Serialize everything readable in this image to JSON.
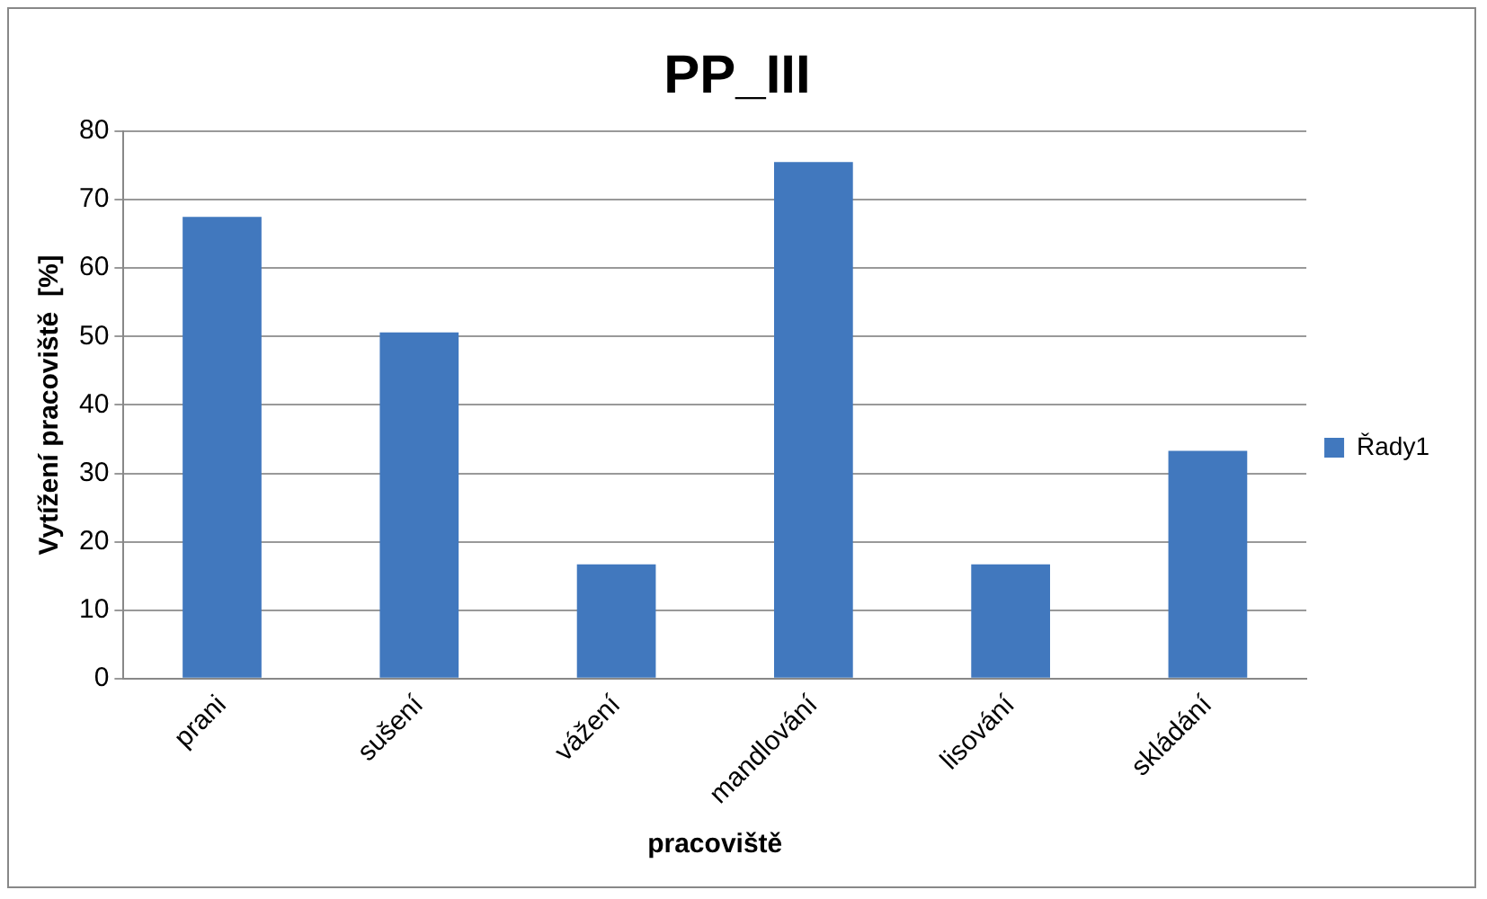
{
  "chart_data": {
    "type": "bar",
    "title": "PP_III",
    "xlabel": "pracoviště",
    "ylabel": "Vytížení pracoviště  [%]",
    "categories": [
      "prani",
      "sušení",
      "vážení",
      "mandlování",
      "lisování",
      "skládání"
    ],
    "series": [
      {
        "name": "Řady1",
        "color": "#4178be",
        "values": [
          67.5,
          50.6,
          16.7,
          75.5,
          16.7,
          33.3
        ]
      }
    ],
    "ylim": [
      0,
      80
    ],
    "yticks": [
      0,
      10,
      20,
      30,
      40,
      50,
      60,
      70,
      80
    ],
    "grid": "y",
    "legend": "right"
  }
}
